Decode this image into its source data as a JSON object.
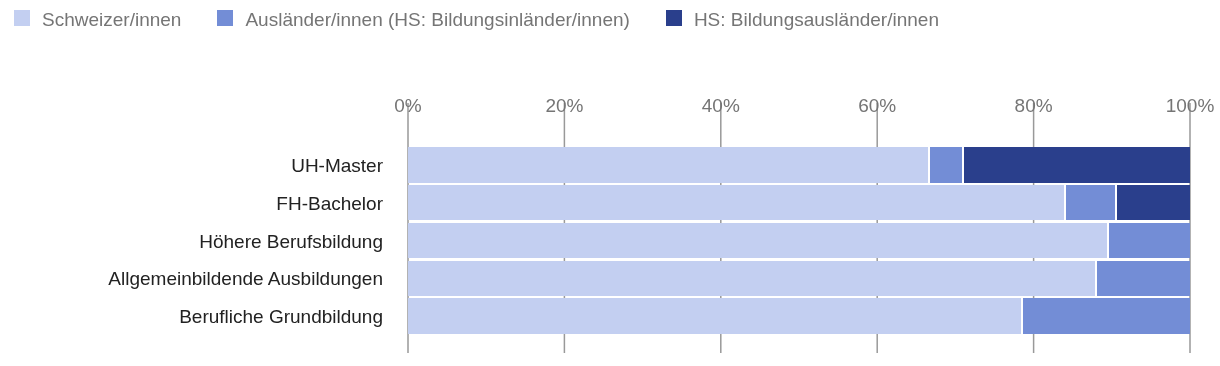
{
  "chart_data": {
    "type": "bar",
    "orientation": "horizontal",
    "stacked": true,
    "categories": [
      "UH-Master",
      "FH-Bachelor",
      "Höhere Berufsbildung",
      "Allgemeinbildende Ausbildungen",
      "Berufliche Grundbildung"
    ],
    "series": [
      {
        "name": "Schweizer/innen",
        "color": "#c3cff1",
        "values": [
          66.5,
          83.9,
          89.4,
          87.9,
          78.4
        ]
      },
      {
        "name": "Ausländer/innen (HS: Bildungsinländer/innen)",
        "color": "#738dd6",
        "values": [
          4.3,
          6.5,
          10.6,
          12.1,
          21.6
        ]
      },
      {
        "name": "HS: Bildungsausländer/innen",
        "color": "#2a3f8c",
        "values": [
          29.2,
          9.6,
          null,
          null,
          null
        ]
      }
    ],
    "xlim": [
      0,
      100
    ],
    "xticks": [
      {
        "value": 0,
        "label": "0%"
      },
      {
        "value": 20,
        "label": "20%"
      },
      {
        "value": 40,
        "label": "40%"
      },
      {
        "value": 60,
        "label": "60%"
      },
      {
        "value": 80,
        "label": "80%"
      },
      {
        "value": 100,
        "label": "100%"
      }
    ],
    "grid": "x",
    "legend": "top left"
  }
}
